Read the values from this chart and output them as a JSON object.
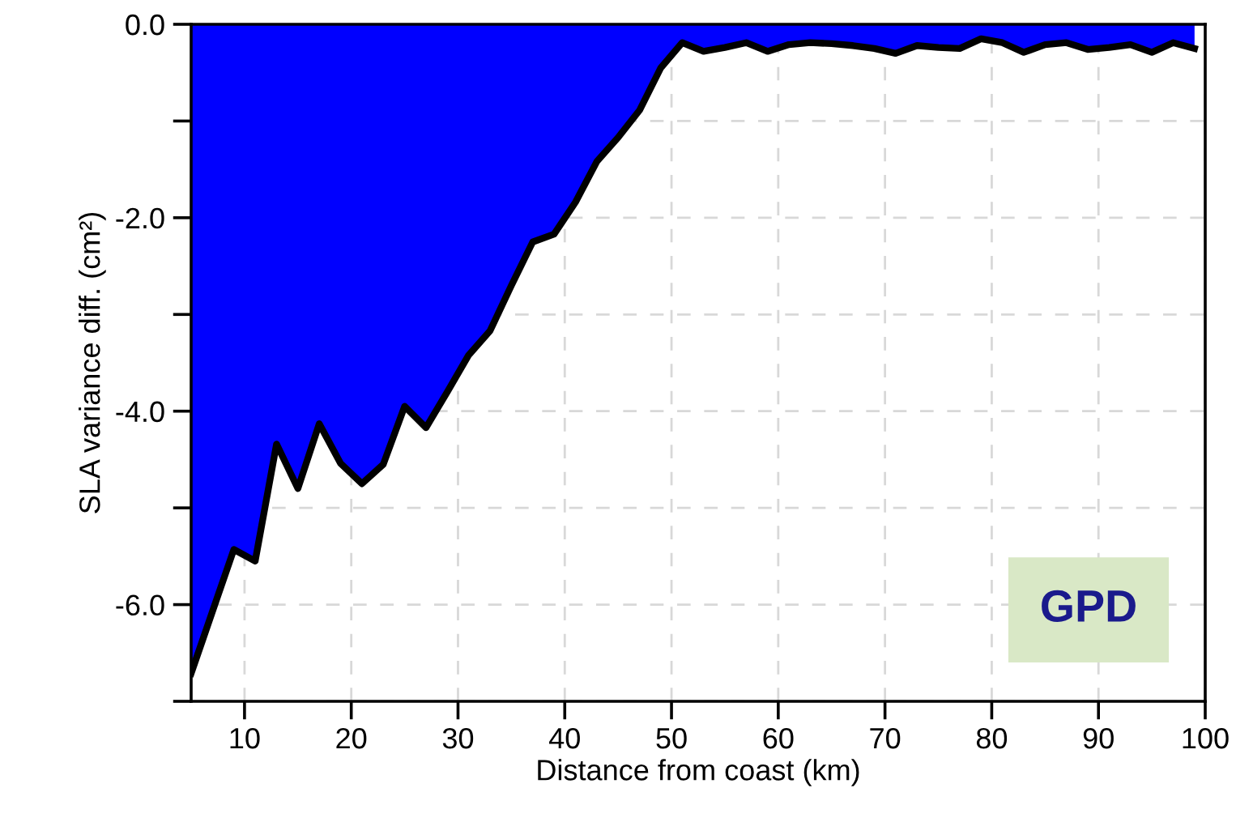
{
  "chart_data": {
    "type": "area",
    "xlabel": "Distance from coast (km)",
    "ylabel": "SLA variance diff. (cm²)",
    "annotations": [
      "GPD"
    ],
    "x": [
      5,
      7,
      9,
      11,
      13,
      15,
      17,
      19,
      21,
      23,
      25,
      27,
      29,
      31,
      33,
      35,
      37,
      39,
      41,
      43,
      45,
      47,
      49,
      51,
      53,
      55,
      57,
      59,
      61,
      63,
      65,
      67,
      69,
      71,
      73,
      75,
      77,
      79,
      81,
      83,
      85,
      87,
      89,
      91,
      93,
      95,
      97,
      99
    ],
    "series": [
      {
        "color": "#0000ff",
        "values": [
          -6.71,
          -6.07,
          -5.43,
          -5.55,
          -4.34,
          -4.8,
          -4.13,
          -4.54,
          -4.75,
          -4.55,
          -3.95,
          -4.17,
          -3.8,
          -3.42,
          -3.17,
          -2.7,
          -2.25,
          -2.17,
          -1.84,
          -1.42,
          -1.17,
          -0.89,
          -0.45,
          -0.19,
          -0.28,
          -0.24,
          -0.19,
          -0.28,
          -0.21,
          -0.19,
          -0.2,
          -0.22,
          -0.25,
          -0.3,
          -0.22,
          -0.24,
          -0.25,
          -0.15,
          -0.19,
          -0.29,
          -0.21,
          -0.19,
          -0.26,
          -0.24,
          -0.21,
          -0.29,
          -0.19,
          -0.25
        ]
      }
    ],
    "xlim": [
      5,
      100
    ],
    "ylim": [
      -7,
      0
    ],
    "xticks": [
      10,
      20,
      30,
      40,
      50,
      60,
      70,
      80,
      90,
      100
    ],
    "yticks": [
      {
        "value": -7,
        "label": null
      },
      {
        "value": -6,
        "label": "-6.0"
      },
      {
        "value": -5,
        "label": null
      },
      {
        "value": -4,
        "label": "-4.0"
      },
      {
        "value": -3,
        "label": null
      },
      {
        "value": -2,
        "label": "-2.0"
      },
      {
        "value": -1,
        "label": null
      },
      {
        "value": 0,
        "label": "0.0"
      }
    ],
    "grid": true,
    "line_style": "solid",
    "marker": "none"
  }
}
